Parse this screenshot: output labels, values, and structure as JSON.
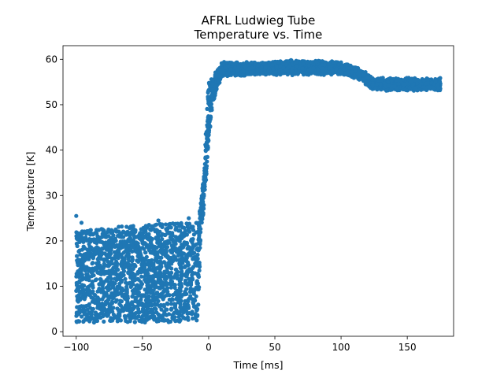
{
  "chart_data": {
    "type": "scatter",
    "title": "AFRL Ludwieg Tube",
    "subtitle": "Temperature vs. Time",
    "xlabel": "Time [ms]",
    "ylabel": "Temperature [K]",
    "xlim": [
      -110,
      185
    ],
    "ylim": [
      -1,
      63
    ],
    "xticks": [
      -100,
      -50,
      0,
      50,
      100,
      150
    ],
    "xtick_labels": [
      "−100",
      "−50",
      "0",
      "50",
      "100",
      "150"
    ],
    "yticks": [
      0,
      10,
      20,
      30,
      40,
      50,
      60
    ],
    "ytick_labels": [
      "0",
      "10",
      "20",
      "30",
      "40",
      "50",
      "60"
    ],
    "grid": false,
    "marker_color": "#1f77b4",
    "series": [
      {
        "x_range": [
          -100,
          175
        ],
        "envelope": [
          {
            "x": -100,
            "y_min": 2.0,
            "y_max": 22.0
          },
          {
            "x": -90,
            "y_min": 2.0,
            "y_max": 22.5
          },
          {
            "x": -75,
            "y_min": 2.0,
            "y_max": 23.0
          },
          {
            "x": -50,
            "y_min": 2.0,
            "y_max": 23.5
          },
          {
            "x": -25,
            "y_min": 2.0,
            "y_max": 24.0
          },
          {
            "x": -8,
            "y_min": 3.0,
            "y_max": 24.0
          },
          {
            "x": -6,
            "y_min": 20.0,
            "y_max": 28.0
          },
          {
            "x": -4,
            "y_min": 26.0,
            "y_max": 34.0
          },
          {
            "x": -2,
            "y_min": 33.0,
            "y_max": 45.0
          },
          {
            "x": 0,
            "y_min": 42.0,
            "y_max": 55.0
          },
          {
            "x": 3,
            "y_min": 50.0,
            "y_max": 56.0
          },
          {
            "x": 6,
            "y_min": 53.0,
            "y_max": 58.0
          },
          {
            "x": 10,
            "y_min": 56.0,
            "y_max": 59.5
          },
          {
            "x": 40,
            "y_min": 56.5,
            "y_max": 59.5
          },
          {
            "x": 70,
            "y_min": 56.5,
            "y_max": 60.0
          },
          {
            "x": 100,
            "y_min": 56.5,
            "y_max": 59.5
          },
          {
            "x": 112,
            "y_min": 55.5,
            "y_max": 58.5
          },
          {
            "x": 125,
            "y_min": 53.0,
            "y_max": 56.0
          },
          {
            "x": 150,
            "y_min": 53.0,
            "y_max": 56.0
          },
          {
            "x": 175,
            "y_min": 53.0,
            "y_max": 56.0
          }
        ],
        "outliers": [
          {
            "x": -100,
            "y": 25.5
          },
          {
            "x": -96,
            "y": 24.0
          },
          {
            "x": -38,
            "y": 24.5
          },
          {
            "x": -15,
            "y": 25.0
          },
          {
            "x": -10,
            "y": 3.0
          },
          {
            "x": -9,
            "y": 2.5
          }
        ]
      }
    ]
  }
}
